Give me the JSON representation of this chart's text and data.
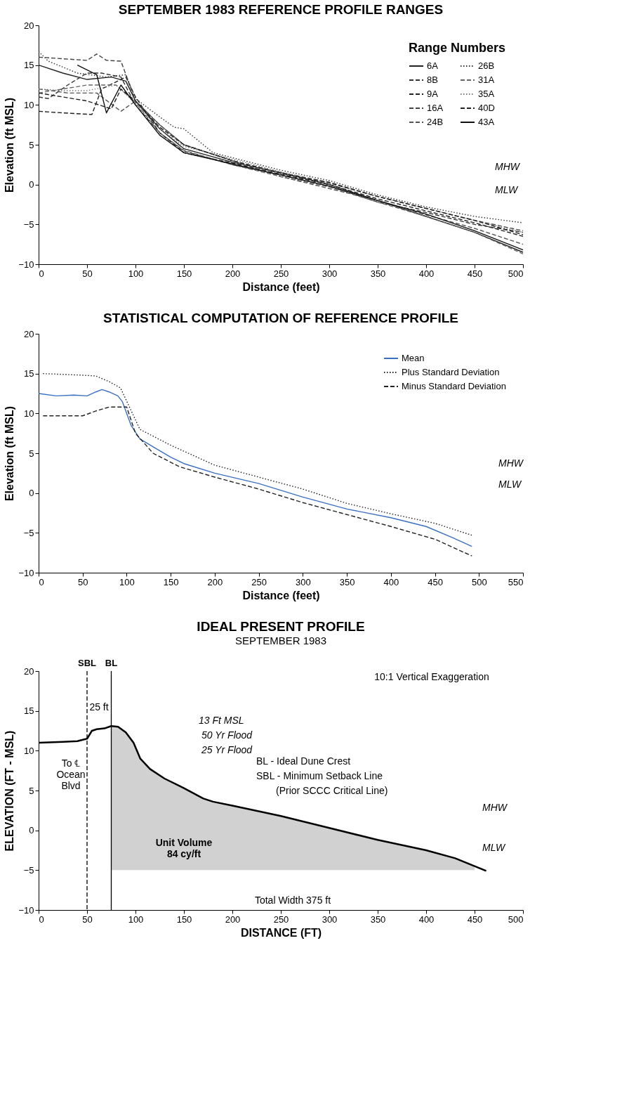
{
  "chart_data": [
    {
      "type": "line",
      "title": "SEPTEMBER 1983 REFERENCE PROFILE RANGES",
      "xlabel": "Distance (feet)",
      "ylabel": "Elevation (ft MSL)",
      "legend_title": "Range Numbers",
      "legend": "top right",
      "xlim": [
        0,
        500
      ],
      "ylim": [
        -10,
        20
      ],
      "xticks": [
        0,
        50,
        100,
        150,
        200,
        250,
        300,
        350,
        400,
        450,
        500
      ],
      "yticks": [
        -10,
        -5,
        0,
        5,
        10,
        15,
        20
      ],
      "series": [
        {
          "name": "6A",
          "color": "#222222",
          "line_style": "solid",
          "x": [
            0,
            25,
            50,
            75,
            90,
            100,
            125,
            150,
            200,
            250,
            300,
            350,
            400,
            450,
            500
          ],
          "values": [
            15,
            14,
            13.2,
            13.5,
            13,
            10.5,
            7,
            4.5,
            2.8,
            1.5,
            0,
            -2,
            -4,
            -6,
            -8.5
          ]
        },
        {
          "name": "8B",
          "color": "#333333",
          "line_style": "dashed",
          "x": [
            0,
            10,
            30,
            50,
            65,
            85,
            100,
            125,
            150,
            200,
            250,
            300,
            350,
            400,
            450,
            500
          ],
          "values": [
            11,
            10.8,
            12.5,
            14,
            14,
            13.5,
            10,
            6.5,
            4.2,
            2.5,
            1.2,
            -0.2,
            -2.2,
            -3.5,
            -5,
            -6
          ]
        },
        {
          "name": "9A",
          "color": "#222222",
          "line_style": "dashed",
          "x": [
            0,
            25,
            55,
            65,
            90,
            100,
            125,
            150,
            200,
            250,
            300,
            350,
            400,
            450,
            500
          ],
          "values": [
            9.2,
            9,
            8.8,
            12,
            13.5,
            11,
            6.5,
            4,
            2.7,
            1.3,
            0,
            -1.8,
            -3.3,
            -4.8,
            -6.5
          ]
        },
        {
          "name": "16A",
          "color": "#444444",
          "line_style": "dashed",
          "x": [
            0,
            50,
            60,
            70,
            85,
            100,
            125,
            150,
            200,
            250,
            300,
            350,
            400,
            450,
            500
          ],
          "values": [
            16,
            15.6,
            16.4,
            15.6,
            15.5,
            10.5,
            7.5,
            5,
            3,
            1.5,
            0.3,
            -1.5,
            -3,
            -4.5,
            -5.8
          ]
        },
        {
          "name": "24B",
          "color": "#555555",
          "line_style": "dashed",
          "x": [
            0,
            30,
            60,
            85,
            100,
            125,
            150,
            200,
            250,
            300,
            350,
            400,
            450,
            500
          ],
          "values": [
            12,
            11.5,
            11.5,
            9.2,
            10.5,
            7.5,
            5,
            3,
            1,
            -0.5,
            -2,
            -3.8,
            -5.5,
            -7.5
          ]
        },
        {
          "name": "26B",
          "color": "#333333",
          "line_style": "dotted",
          "x": [
            0,
            10,
            40,
            70,
            90,
            100,
            125,
            140,
            150,
            180,
            250,
            300,
            350,
            400,
            450,
            500
          ],
          "values": [
            16.7,
            15.5,
            14,
            13.5,
            13.8,
            10.8,
            8.5,
            7.2,
            7,
            4,
            1.8,
            0.5,
            -1.3,
            -2.8,
            -4,
            -4.8
          ]
        },
        {
          "name": "31A",
          "color": "#666666",
          "line_style": "dashed",
          "x": [
            0,
            25,
            50,
            80,
            100,
            125,
            150,
            200,
            250,
            300,
            350,
            400,
            450,
            500
          ],
          "values": [
            11.5,
            12,
            12.5,
            12.5,
            10.3,
            6.5,
            4.3,
            2.5,
            1,
            -0.3,
            -2.2,
            -4,
            -6,
            -8.7
          ]
        },
        {
          "name": "35A",
          "color": "#777777",
          "line_style": "dotted",
          "x": [
            0,
            25,
            50,
            80,
            100,
            125,
            150,
            200,
            250,
            300,
            350,
            400,
            450,
            500
          ],
          "values": [
            12,
            11.8,
            11.8,
            12.5,
            10.2,
            7,
            4.8,
            3.2,
            1.6,
            0.2,
            -1.5,
            -3,
            -4.5,
            -6
          ]
        },
        {
          "name": "40D",
          "color": "#222222",
          "line_style": "dashed",
          "x": [
            0,
            25,
            50,
            75,
            85,
            100,
            125,
            150,
            200,
            250,
            300,
            350,
            400,
            450,
            500
          ],
          "values": [
            11.5,
            11,
            10.5,
            9.5,
            12,
            10.5,
            7.2,
            5,
            3,
            1.4,
            0.2,
            -1.5,
            -3,
            -4.5,
            -6.3
          ]
        },
        {
          "name": "43A",
          "color": "#111111",
          "line_style": "solid",
          "x": [
            40,
            60,
            70,
            85,
            100,
            125,
            150,
            200,
            250,
            300,
            350,
            400,
            450,
            500
          ],
          "values": [
            15,
            13.8,
            9,
            12.5,
            10,
            6.2,
            4,
            2.6,
            1.2,
            -0.2,
            -2,
            -3.7,
            -5.8,
            -8.2
          ]
        }
      ],
      "annotations": [
        "MHW",
        "MLW"
      ]
    },
    {
      "type": "line",
      "title": "STATISTICAL COMPUTATION OF REFERENCE PROFILE",
      "xlabel": "Distance (feet)",
      "ylabel": "Elevation (ft MSL)",
      "legend": "top right",
      "xlim": [
        0,
        550
      ],
      "ylim": [
        -10,
        20
      ],
      "xticks": [
        0,
        50,
        100,
        150,
        200,
        250,
        300,
        350,
        400,
        450,
        500,
        550
      ],
      "yticks": [
        -10,
        -5,
        0,
        5,
        10,
        15,
        20
      ],
      "series": [
        {
          "name": "Mean",
          "color": "#3a6fc4",
          "line_style": "solid",
          "x": [
            0,
            20,
            40,
            55,
            65,
            72,
            80,
            90,
            95,
            105,
            115,
            130,
            150,
            165,
            200,
            250,
            300,
            350,
            400,
            440,
            470,
            492
          ],
          "values": [
            12.5,
            12.2,
            12.3,
            12.2,
            12.7,
            13,
            12.7,
            12.2,
            11.5,
            8.5,
            6.8,
            5.8,
            4.5,
            3.7,
            2.5,
            1.2,
            -0.5,
            -2,
            -3.1,
            -4.2,
            -5.6,
            -6.7
          ]
        },
        {
          "name": "Plus Standard Deviation",
          "color": "#222222",
          "line_style": "dotted",
          "x": [
            5,
            50,
            65,
            80,
            93,
            115,
            150,
            200,
            250,
            300,
            350,
            400,
            450,
            492
          ],
          "values": [
            15,
            14.8,
            14.7,
            14,
            13.2,
            8,
            6,
            3.5,
            2,
            0.5,
            -1.3,
            -2.6,
            -3.8,
            -5.3
          ]
        },
        {
          "name": "Minus Standard Deviation",
          "color": "#222222",
          "line_style": "dashed",
          "x": [
            5,
            50,
            65,
            80,
            100,
            110,
            130,
            160,
            200,
            250,
            300,
            350,
            400,
            450,
            492
          ],
          "values": [
            9.7,
            9.7,
            10.3,
            10.8,
            10.8,
            7.5,
            5,
            3.3,
            2,
            0.5,
            -1.2,
            -2.7,
            -4.2,
            -5.8,
            -7.9
          ]
        }
      ],
      "annotations": [
        "MHW",
        "MLW"
      ]
    },
    {
      "type": "line",
      "title": "IDEAL PRESENT PROFILE",
      "subtitle": "SEPTEMBER 1983",
      "xlabel": "DISTANCE (FT)",
      "ylabel": "ELEVATION (FT - MSL)",
      "xlim": [
        0,
        500
      ],
      "ylim": [
        -10,
        20
      ],
      "xticks": [
        0,
        50,
        100,
        150,
        200,
        250,
        300,
        350,
        400,
        450,
        500
      ],
      "yticks": [
        -10,
        -5,
        0,
        5,
        10,
        15,
        20
      ],
      "series": [
        {
          "color": "#000000",
          "line_style": "solid",
          "x": [
            0,
            25,
            40,
            50,
            55,
            60,
            68,
            75,
            82,
            90,
            98,
            105,
            115,
            130,
            150,
            170,
            180,
            200,
            250,
            300,
            350,
            400,
            430,
            450,
            462
          ],
          "values": [
            11,
            11.1,
            11.2,
            11.5,
            12.5,
            12.7,
            12.8,
            13.1,
            13,
            12.3,
            11,
            9,
            7.7,
            6.5,
            5.3,
            4,
            3.6,
            3.1,
            1.8,
            0.3,
            -1.2,
            -2.5,
            -3.5,
            -4.5,
            -5.1
          ],
          "upper": [
            null,
            null,
            null,
            null,
            null,
            null,
            null,
            13.1,
            13,
            12.3,
            11,
            9,
            7.7,
            6.5,
            5.3,
            4,
            3.6,
            3.1,
            1.8,
            0.3,
            -1.2,
            -2.5,
            -3.5,
            -4.5,
            null
          ],
          "lower": [
            null,
            null,
            null,
            null,
            null,
            null,
            null,
            -5,
            -5,
            -5,
            -5,
            -5,
            -5,
            -5,
            -5,
            -5,
            -5,
            -5,
            -5,
            -5,
            -5,
            -5,
            -5,
            -5,
            null
          ]
        }
      ],
      "ref_lines": [
        {
          "axis": "x",
          "value": 50,
          "label": "SBL",
          "line_style": "dashed",
          "color": "#000000"
        },
        {
          "axis": "x",
          "value": 75,
          "label": "BL",
          "line_style": "solid",
          "color": "#000000"
        }
      ],
      "annotations": [
        "10:1 Vertical Exaggeration",
        "13 Ft MSL",
        "50 Yr Flood",
        "25 Yr Flood",
        "MHW",
        "MLW",
        "25 ft",
        "To ℄\nOcean\nBlvd",
        "Unit Volume\n84 cy/ft",
        "Total Width 375 ft",
        "BL - Ideal Dune Crest",
        "SBL - Minimum Setback Line",
        "(Prior SCCC Critical Line)"
      ]
    }
  ]
}
